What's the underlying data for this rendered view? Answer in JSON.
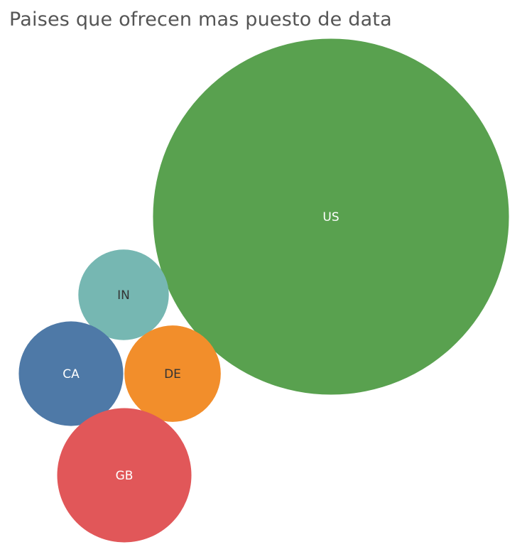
{
  "title": "Paises que ofrecen mas puesto de data",
  "chart_data": {
    "type": "bubble",
    "title": "Paises que ofrecen mas puesto de data",
    "categories": [
      "US",
      "IN",
      "CA",
      "DE",
      "GB"
    ],
    "values": [
      232,
      15,
      20,
      17,
      33
    ],
    "colors": [
      "#59a14f",
      "#76b7b2",
      "#4e79a7",
      "#f28e2b",
      "#e15759"
    ],
    "label_colors": [
      "#ffffff",
      "#333333",
      "#ffffff",
      "#333333",
      "#ffffff"
    ],
    "legend": "none",
    "grid": false
  }
}
